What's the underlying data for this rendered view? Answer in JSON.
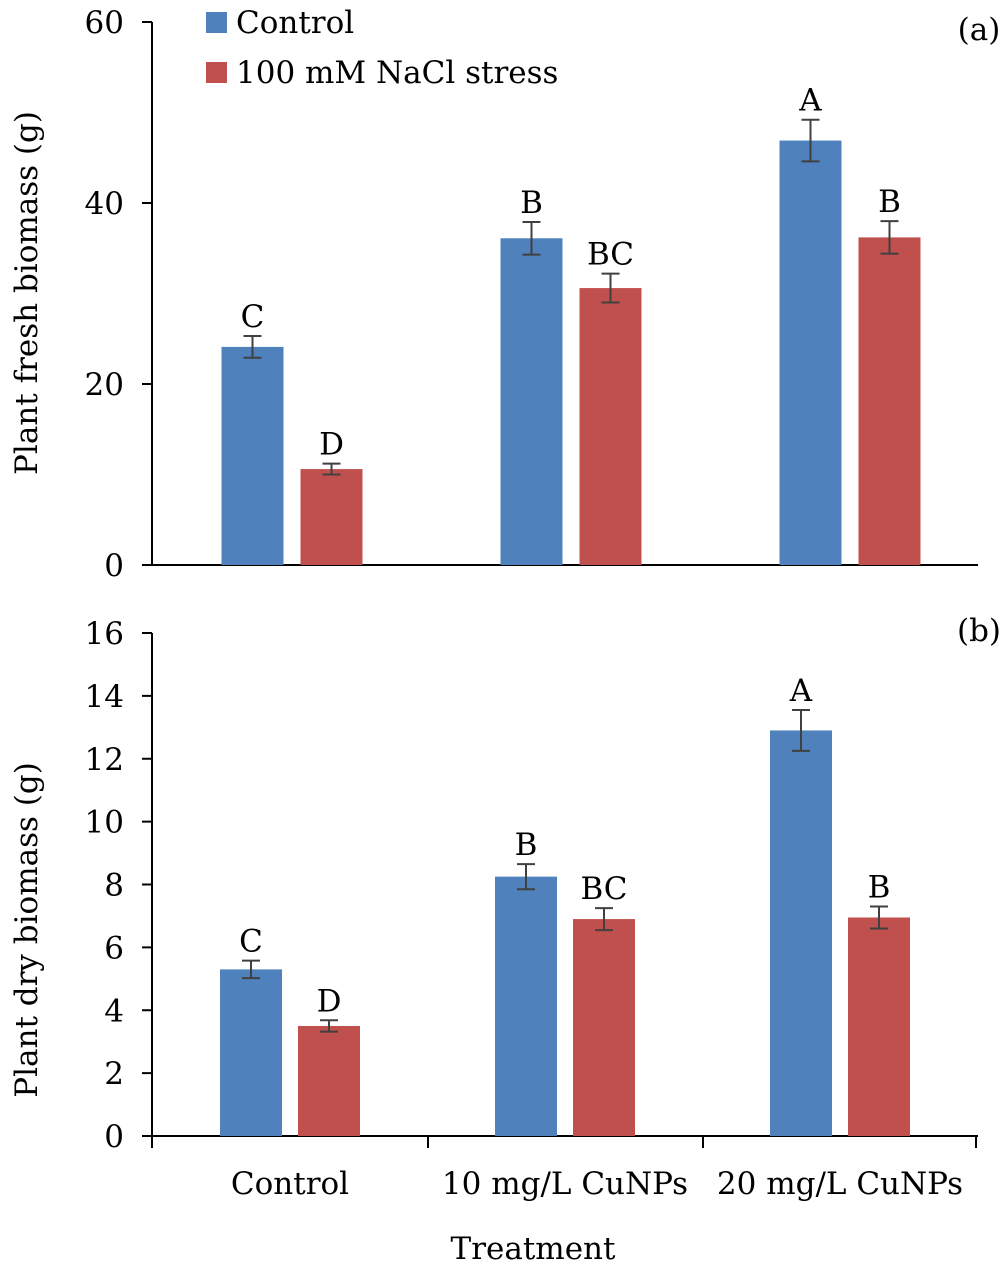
{
  "colors": {
    "Control": "#4f81bd",
    "100 mM NaCl stress": "#c0504d",
    "axis": "#000000",
    "error_bar": "#404040"
  },
  "xlabel": "Treatment",
  "categories": [
    "Control",
    "10 mg/L CuNPs",
    "20 mg/L CuNPs"
  ],
  "legend": [
    "Control",
    "100 mM NaCl stress"
  ],
  "chart_data": [
    {
      "type": "bar",
      "panel_label": "(a)",
      "ylabel": "Plant fresh biomass (g)",
      "ylim": [
        0,
        60
      ],
      "yticks": [
        0,
        20,
        40,
        60
      ],
      "legend_position": "top-left",
      "categories": [
        "Control",
        "10 mg/L CuNPs",
        "20 mg/L CuNPs"
      ],
      "series": [
        {
          "name": "Control",
          "values": [
            24.1,
            36.1,
            46.9
          ],
          "errors": [
            1.2,
            1.8,
            2.3
          ],
          "letters": [
            "C",
            "B",
            "A"
          ]
        },
        {
          "name": "100 mM NaCl stress",
          "values": [
            10.6,
            30.6,
            36.2
          ],
          "errors": [
            0.6,
            1.6,
            1.8
          ],
          "letters": [
            "D",
            "BC",
            "B"
          ]
        }
      ]
    },
    {
      "type": "bar",
      "panel_label": "(b)",
      "ylabel": "Plant dry biomass (g)",
      "ylim": [
        0,
        16
      ],
      "yticks": [
        0,
        2,
        4,
        6,
        8,
        10,
        12,
        14,
        16
      ],
      "categories": [
        "Control",
        "10 mg/L CuNPs",
        "20 mg/L CuNPs"
      ],
      "xlabel": "Treatment",
      "series": [
        {
          "name": "Control",
          "values": [
            5.3,
            8.25,
            12.9
          ],
          "errors": [
            0.28,
            0.4,
            0.65
          ],
          "letters": [
            "C",
            "B",
            "A"
          ]
        },
        {
          "name": "100 mM NaCl stress",
          "values": [
            3.5,
            6.9,
            6.95
          ],
          "errors": [
            0.18,
            0.35,
            0.35
          ],
          "letters": [
            "D",
            "BC",
            "B"
          ]
        }
      ]
    }
  ]
}
